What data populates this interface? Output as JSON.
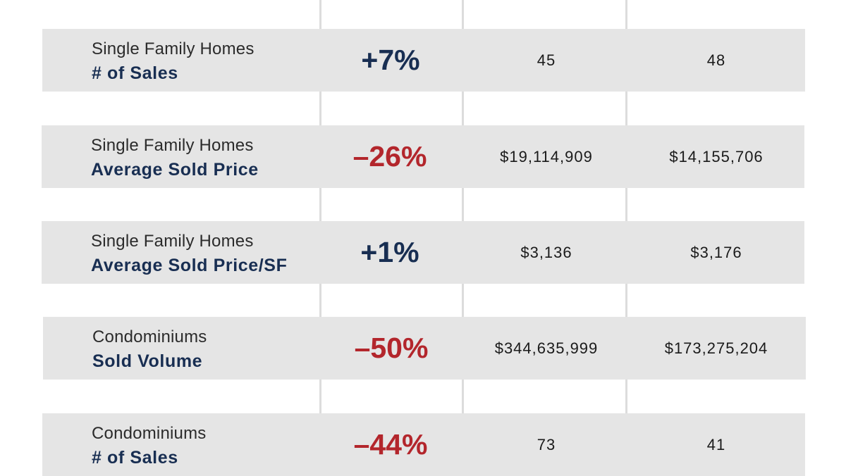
{
  "rows": [
    {
      "category": "Single Family Homes",
      "metric": "# of Sales",
      "change": "+7%",
      "trend": "positive",
      "value_1": "45",
      "value_2": "48"
    },
    {
      "category": "Single Family Homes",
      "metric": "Average Sold Price",
      "change": "–26%",
      "trend": "negative",
      "value_1": "$19,114,909",
      "value_2": "$14,155,706"
    },
    {
      "category": "Single Family Homes",
      "metric": "Average Sold Price/SF",
      "change": "+1%",
      "trend": "positive",
      "value_1": "$3,136",
      "value_2": "$3,176"
    },
    {
      "category": "Condominiums",
      "metric": "Sold Volume",
      "change": "–50%",
      "trend": "negative",
      "value_1": "$344,635,999",
      "value_2": "$173,275,204"
    },
    {
      "category": "Condominiums",
      "metric": "# of Sales",
      "change": "–44%",
      "trend": "negative",
      "value_1": "73",
      "value_2": "41"
    }
  ],
  "colors": {
    "positive": "#182e52",
    "negative": "#b3262c",
    "row_background": "#e5e5e5",
    "divider": "#dcdcdc"
  }
}
